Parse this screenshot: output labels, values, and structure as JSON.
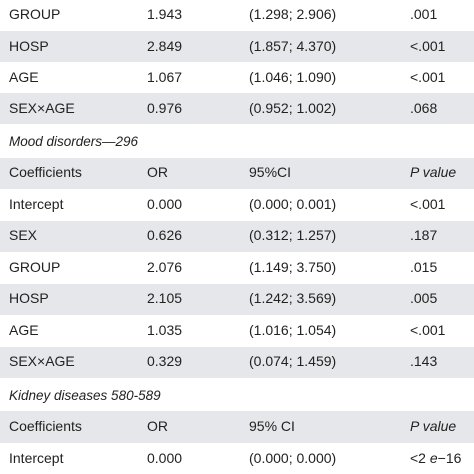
{
  "top_rows": [
    {
      "label": "GROUP",
      "or": "1.943",
      "ci": "(1.298; 2.906)",
      "p": ".001",
      "shaded": false
    },
    {
      "label": "HOSP",
      "or": "2.849",
      "ci": "(1.857; 4.370)",
      "p": "<.001",
      "shaded": true
    },
    {
      "label": "AGE",
      "or": "1.067",
      "ci": "(1.046; 1.090)",
      "p": "<.001",
      "shaded": false
    },
    {
      "label": "SEX×AGE",
      "or": "0.976",
      "ci": "(0.952; 1.002)",
      "p": ".068",
      "shaded": true
    }
  ],
  "mood": {
    "title": "Mood disorders—296",
    "header": {
      "coef": "Coefficients",
      "or": "OR",
      "ci": "95%CI",
      "p": "P value"
    },
    "rows": [
      {
        "label": "Intercept",
        "or": "0.000",
        "ci": "(0.000; 0.001)",
        "p": "<.001"
      },
      {
        "label": "SEX",
        "or": "0.626",
        "ci": "(0.312; 1.257)",
        "p": ".187"
      },
      {
        "label": "GROUP",
        "or": "2.076",
        "ci": "(1.149; 3.750)",
        "p": ".015"
      },
      {
        "label": "HOSP",
        "or": "2.105",
        "ci": "(1.242; 3.569)",
        "p": ".005"
      },
      {
        "label": "AGE",
        "or": "1.035",
        "ci": "(1.016; 1.054)",
        "p": "<.001"
      },
      {
        "label": "SEX×AGE",
        "or": "0.329",
        "ci": "(0.074; 1.459)",
        "p": ".143"
      }
    ]
  },
  "kidney": {
    "title": "Kidney diseases 580-589",
    "header": {
      "coef": "Coefficients",
      "or": "OR",
      "ci": "95% CI",
      "p": "P value"
    },
    "rows": [
      {
        "label": "Intercept",
        "or": "0.000",
        "ci": "(0.000; 0.000)",
        "p_prefix": "<2 ",
        "p_italic": "e",
        "p_suffix": "−16"
      }
    ]
  }
}
